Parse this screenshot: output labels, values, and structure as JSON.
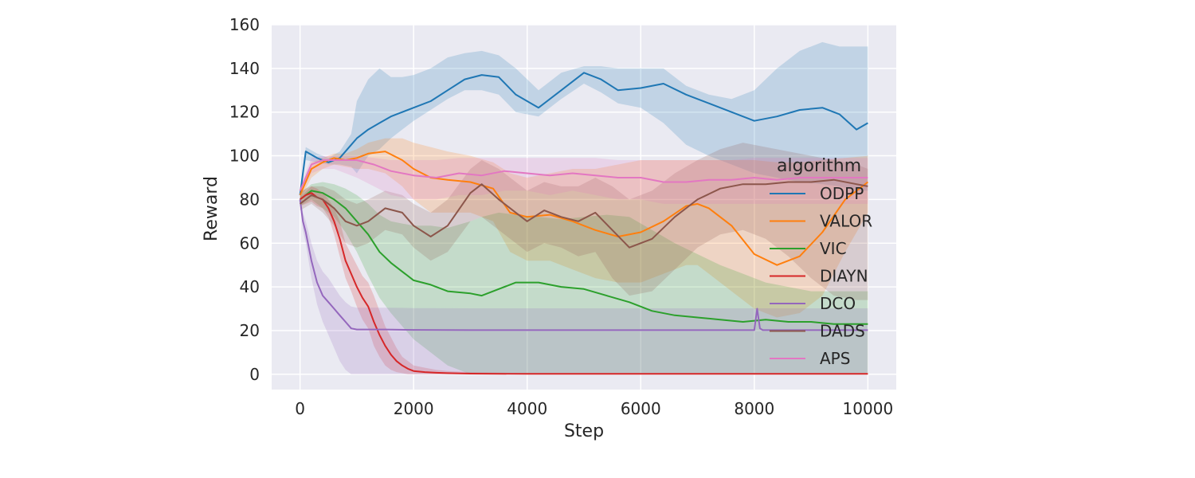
{
  "chart_data": {
    "type": "line",
    "xlabel": "Step",
    "ylabel": "Reward",
    "xlim": [
      -500,
      10500
    ],
    "ylim": [
      -7,
      160
    ],
    "xticks": [
      0,
      2000,
      4000,
      6000,
      8000,
      10000
    ],
    "yticks": [
      0,
      20,
      40,
      60,
      80,
      100,
      120,
      140,
      160
    ],
    "grid": true,
    "legend": {
      "title": "algorithm",
      "placement": "right"
    },
    "series": [
      {
        "name": "ODPP",
        "color": "#1f77b4",
        "x": [
          0,
          100,
          300,
          500,
          700,
          900,
          1000,
          1200,
          1400,
          1600,
          1800,
          2000,
          2300,
          2600,
          2900,
          3200,
          3500,
          3800,
          4200,
          4600,
          5000,
          5300,
          5600,
          6000,
          6400,
          6800,
          7200,
          7600,
          8000,
          8400,
          8800,
          9200,
          9500,
          9800,
          10000
        ],
        "y": [
          82,
          102,
          99,
          97,
          99,
          105,
          108,
          112,
          115,
          118,
          120,
          122,
          125,
          130,
          135,
          137,
          136,
          128,
          122,
          130,
          138,
          135,
          130,
          131,
          133,
          128,
          124,
          120,
          116,
          118,
          121,
          122,
          119,
          112,
          115
        ],
        "upper": [
          85,
          104,
          101,
          99,
          102,
          110,
          125,
          135,
          140,
          136,
          136,
          137,
          140,
          145,
          147,
          148,
          146,
          140,
          130,
          138,
          141,
          141,
          140,
          140,
          140,
          132,
          128,
          126,
          130,
          140,
          148,
          152,
          150,
          150,
          150
        ],
        "lower": [
          79,
          98,
          97,
          96,
          96,
          95,
          92,
          100,
          103,
          108,
          112,
          116,
          121,
          126,
          130,
          130,
          128,
          120,
          118,
          126,
          133,
          129,
          124,
          122,
          115,
          105,
          100,
          96,
          92,
          90,
          88,
          87,
          86,
          84,
          84
        ]
      },
      {
        "name": "VALOR",
        "color": "#ff7f0e",
        "x": [
          0,
          200,
          400,
          600,
          800,
          1000,
          1200,
          1500,
          1800,
          2000,
          2300,
          2600,
          3000,
          3400,
          3700,
          4000,
          4400,
          4800,
          5200,
          5600,
          6000,
          6400,
          6800,
          7000,
          7200,
          7600,
          8000,
          8400,
          8800,
          9200,
          9600,
          10000
        ],
        "y": [
          82,
          94,
          97,
          99,
          98,
          99,
          101,
          102,
          98,
          94,
          90,
          89,
          88,
          85,
          74,
          72,
          73,
          70,
          66,
          63,
          65,
          70,
          77,
          78,
          76,
          68,
          55,
          50,
          54,
          65,
          80,
          88
        ],
        "upper": [
          85,
          97,
          99,
          101,
          101,
          103,
          106,
          108,
          108,
          106,
          104,
          102,
          100,
          97,
          92,
          90,
          92,
          94,
          94,
          96,
          98,
          98,
          98,
          98,
          98,
          98,
          98,
          97,
          97,
          98,
          99,
          100
        ],
        "lower": [
          80,
          90,
          94,
          96,
          95,
          94,
          94,
          92,
          86,
          80,
          74,
          74,
          74,
          70,
          56,
          52,
          52,
          48,
          44,
          42,
          42,
          46,
          50,
          50,
          46,
          38,
          30,
          26,
          28,
          36,
          56,
          74
        ]
      },
      {
        "name": "VIC",
        "color": "#2ca02c",
        "x": [
          0,
          200,
          400,
          600,
          800,
          1000,
          1200,
          1400,
          1600,
          1800,
          2000,
          2300,
          2600,
          3000,
          3200,
          3500,
          3800,
          4200,
          4600,
          5000,
          5400,
          5800,
          6200,
          6600,
          7000,
          7400,
          7800,
          8200,
          8600,
          9000,
          9400,
          9800,
          10000
        ],
        "y": [
          80,
          84,
          83,
          80,
          76,
          70,
          64,
          56,
          51,
          47,
          43,
          41,
          38,
          37,
          36,
          39,
          42,
          42,
          40,
          39,
          36,
          33,
          29,
          27,
          26,
          25,
          24,
          25,
          24,
          24,
          23,
          23,
          23
        ],
        "upper": [
          83,
          87,
          88,
          87,
          85,
          82,
          78,
          73,
          70,
          69,
          68,
          68,
          67,
          70,
          72,
          74,
          73,
          72,
          71,
          72,
          73,
          72,
          66,
          60,
          55,
          50,
          46,
          42,
          40,
          38,
          38,
          38,
          38
        ],
        "lower": [
          77,
          80,
          76,
          72,
          65,
          56,
          45,
          35,
          28,
          22,
          16,
          10,
          4,
          0,
          0,
          0,
          0,
          0,
          0,
          0,
          0,
          0,
          0,
          0,
          0,
          0,
          0,
          0,
          0,
          0,
          0,
          0,
          0
        ]
      },
      {
        "name": "DIAYN",
        "color": "#d62728",
        "x": [
          0,
          100,
          200,
          300,
          400,
          500,
          600,
          700,
          800,
          900,
          1000,
          1100,
          1200,
          1300,
          1400,
          1500,
          1600,
          1700,
          1800,
          1900,
          2000,
          2200,
          2400,
          2600,
          3000,
          4000,
          6000,
          8000,
          10000
        ],
        "y": [
          80,
          82,
          83,
          81,
          80,
          76,
          70,
          62,
          52,
          46,
          40,
          35,
          31,
          24,
          18,
          13,
          9,
          6,
          4,
          2.5,
          1.5,
          1,
          0.7,
          0.5,
          0.3,
          0.2,
          0.2,
          0.2,
          0.2
        ],
        "upper": [
          83,
          85,
          86,
          85,
          83,
          80,
          76,
          70,
          60,
          55,
          50,
          45,
          42,
          36,
          29,
          22,
          17,
          12,
          8,
          6,
          4,
          3,
          2,
          1.5,
          1,
          0.5,
          0.5,
          0.5,
          0.5
        ],
        "lower": [
          77,
          78,
          79,
          77,
          76,
          72,
          64,
          54,
          44,
          38,
          31,
          25,
          21,
          13,
          8,
          4,
          2,
          1,
          0.5,
          0,
          0,
          0,
          0,
          0,
          0,
          0,
          0,
          0,
          0
        ]
      },
      {
        "name": "DCO",
        "color": "#9467bd",
        "x": [
          0,
          50,
          100,
          200,
          300,
          400,
          500,
          600,
          700,
          800,
          900,
          1000,
          1500,
          2000,
          3000,
          4000,
          5000,
          6000,
          7000,
          8000,
          8050,
          8100,
          8150,
          9000,
          10000
        ],
        "y": [
          80,
          70,
          65,
          52,
          42,
          36,
          33,
          30,
          27,
          24,
          21,
          20.5,
          20.5,
          20.3,
          20.2,
          20.2,
          20.2,
          20.2,
          20.2,
          20.2,
          30,
          21,
          20.2,
          20.2,
          20.2
        ],
        "upper": [
          82,
          74,
          70,
          60,
          52,
          47,
          44,
          40,
          36,
          33,
          31,
          30.5,
          30.5,
          30.3,
          30.2,
          30.2,
          30.2,
          30.2,
          30.2,
          30.2,
          30.2,
          30.2,
          30.2,
          30.2,
          30.2
        ],
        "lower": [
          78,
          66,
          60,
          44,
          32,
          24,
          18,
          12,
          6,
          2,
          0,
          0,
          0,
          0,
          0,
          0,
          0,
          0,
          0,
          0,
          0,
          0,
          0,
          0,
          0
        ]
      },
      {
        "name": "DADS",
        "color": "#8c564b",
        "x": [
          0,
          200,
          400,
          600,
          800,
          1000,
          1200,
          1500,
          1800,
          2000,
          2300,
          2600,
          3000,
          3200,
          3500,
          3800,
          4000,
          4300,
          4600,
          4900,
          5200,
          5500,
          5800,
          6200,
          6600,
          7000,
          7400,
          7800,
          8200,
          8600,
          9000,
          9400,
          9800,
          10000
        ],
        "y": [
          78,
          82,
          80,
          76,
          70,
          68,
          70,
          76,
          74,
          68,
          63,
          68,
          83,
          87,
          80,
          74,
          70,
          75,
          72,
          70,
          74,
          66,
          58,
          62,
          72,
          80,
          85,
          87,
          87,
          88,
          88,
          89,
          87,
          86
        ],
        "upper": [
          81,
          86,
          86,
          84,
          80,
          78,
          80,
          84,
          82,
          78,
          74,
          80,
          94,
          98,
          94,
          88,
          84,
          88,
          86,
          86,
          90,
          86,
          80,
          84,
          92,
          98,
          103,
          106,
          104,
          102,
          100,
          98,
          96,
          94
        ],
        "lower": [
          75,
          78,
          74,
          68,
          60,
          58,
          60,
          66,
          64,
          58,
          52,
          56,
          70,
          72,
          66,
          60,
          56,
          60,
          58,
          54,
          56,
          44,
          36,
          38,
          48,
          58,
          64,
          66,
          62,
          54,
          44,
          36,
          34,
          34
        ]
      },
      {
        "name": "APS",
        "color": "#e377c2",
        "x": [
          0,
          200,
          400,
          600,
          800,
          1000,
          1300,
          1600,
          2000,
          2400,
          2800,
          3200,
          3600,
          4000,
          4400,
          4800,
          5200,
          5600,
          6000,
          6400,
          6800,
          7200,
          7600,
          8000,
          8400,
          8800,
          9200,
          9600,
          10000
        ],
        "y": [
          84,
          96,
          98,
          98,
          98,
          98,
          96,
          93,
          91,
          90,
          92,
          91,
          93,
          92,
          91,
          92,
          91,
          90,
          90,
          88,
          88,
          89,
          89,
          90,
          89,
          90,
          90,
          90,
          90
        ],
        "upper": [
          86,
          99,
          100,
          100,
          100,
          100,
          99,
          98,
          98,
          98,
          99,
          99,
          99,
          99,
          99,
          99,
          99,
          98,
          98,
          98,
          98,
          98,
          98,
          99,
          99,
          99,
          99,
          99,
          99
        ],
        "lower": [
          82,
          92,
          94,
          94,
          92,
          90,
          86,
          82,
          80,
          80,
          82,
          82,
          84,
          84,
          82,
          84,
          82,
          80,
          80,
          78,
          78,
          78,
          78,
          78,
          78,
          78,
          78,
          78,
          78
        ]
      }
    ]
  }
}
